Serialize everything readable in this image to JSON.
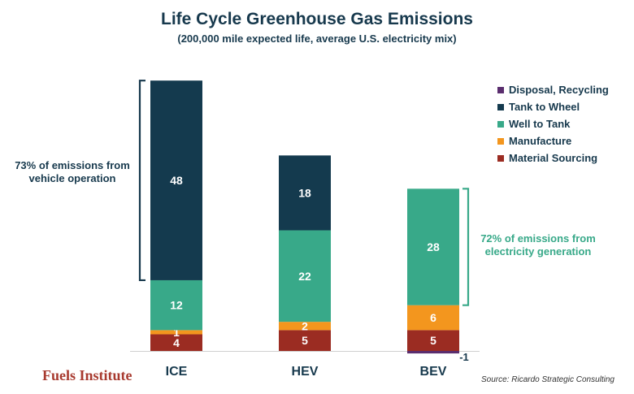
{
  "title": "Life Cycle Greenhouse Gas Emissions",
  "subtitle": "(200,000 mile expected life, average U.S. electricity mix)",
  "annotations": {
    "left": "73% of emissions from vehicle operation",
    "right": "72% of emissions from electricity generation"
  },
  "brand": "Fuels Institute",
  "source": "Source: Ricardo Strategic Consulting",
  "colors": {
    "material_sourcing": "#9b2c22",
    "manufacture": "#f3961e",
    "well_to_tank": "#38a989",
    "tank_to_wheel": "#143a4e",
    "disposal_recycling": "#5a2d6e"
  },
  "chart_data": {
    "type": "bar",
    "stacked": true,
    "title": "Life Cycle Greenhouse Gas Emissions",
    "subtitle": "(200,000 mile expected life, average U.S. electricity mix)",
    "categories": [
      "ICE",
      "HEV",
      "BEV"
    ],
    "legend_position": "top-right",
    "grid": false,
    "series": [
      {
        "name": "Material Sourcing",
        "color": "#9b2c22",
        "values": [
          4,
          5,
          5
        ]
      },
      {
        "name": "Manufacture",
        "color": "#f3961e",
        "values": [
          1,
          2,
          6
        ]
      },
      {
        "name": "Well to Tank",
        "color": "#38a989",
        "values": [
          12,
          22,
          28
        ]
      },
      {
        "name": "Tank to Wheel",
        "color": "#143a4e",
        "values": [
          48,
          18,
          0
        ]
      },
      {
        "name": "Disposal, Recycling",
        "color": "#5a2d6e",
        "values": [
          0,
          0,
          -1
        ]
      }
    ],
    "legend_order": [
      "Disposal, Recycling",
      "Tank to Wheel",
      "Well to Tank",
      "Manufacture",
      "Material Sourcing"
    ]
  }
}
